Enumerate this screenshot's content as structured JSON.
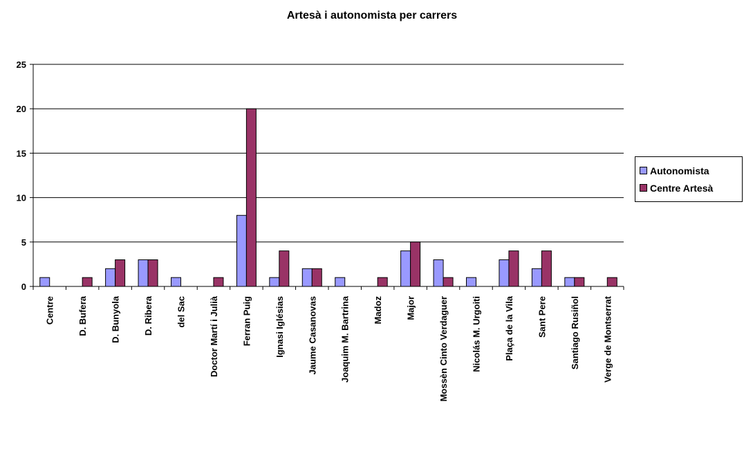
{
  "chart_data": {
    "type": "bar",
    "title": "Artesà i autonomista per carrers",
    "categories": [
      "Centre",
      "D. Bufera",
      "D. Bunyola",
      "D. Ribera",
      "del Sac",
      "Doctor Martí i Julià",
      "Ferran Puig",
      "Ignasi Iglésias",
      "Jaume Casanovas",
      "Joaquim M. Bartrina",
      "Madoz",
      "Major",
      "Mossèn Cinto Verdaguer",
      "Nicolás M. Urgoiti",
      "Plaça de la Vila",
      "Sant Pere",
      "Santiago Rusiñol",
      "Verge de Montserrat"
    ],
    "series": [
      {
        "name": "Autonomista",
        "color": "#9999ff",
        "values": [
          1,
          0,
          2,
          3,
          1,
          0,
          8,
          1,
          2,
          1,
          0,
          4,
          3,
          1,
          3,
          2,
          1,
          0
        ]
      },
      {
        "name": "Centre Artesà",
        "color": "#993366",
        "values": [
          0,
          1,
          3,
          3,
          0,
          1,
          20,
          4,
          2,
          0,
          1,
          5,
          1,
          0,
          4,
          4,
          1,
          1
        ]
      }
    ],
    "ylim": [
      0,
      25
    ],
    "yticks": [
      0,
      5,
      10,
      15,
      20,
      25
    ],
    "grid": true,
    "legend_position": "right"
  }
}
